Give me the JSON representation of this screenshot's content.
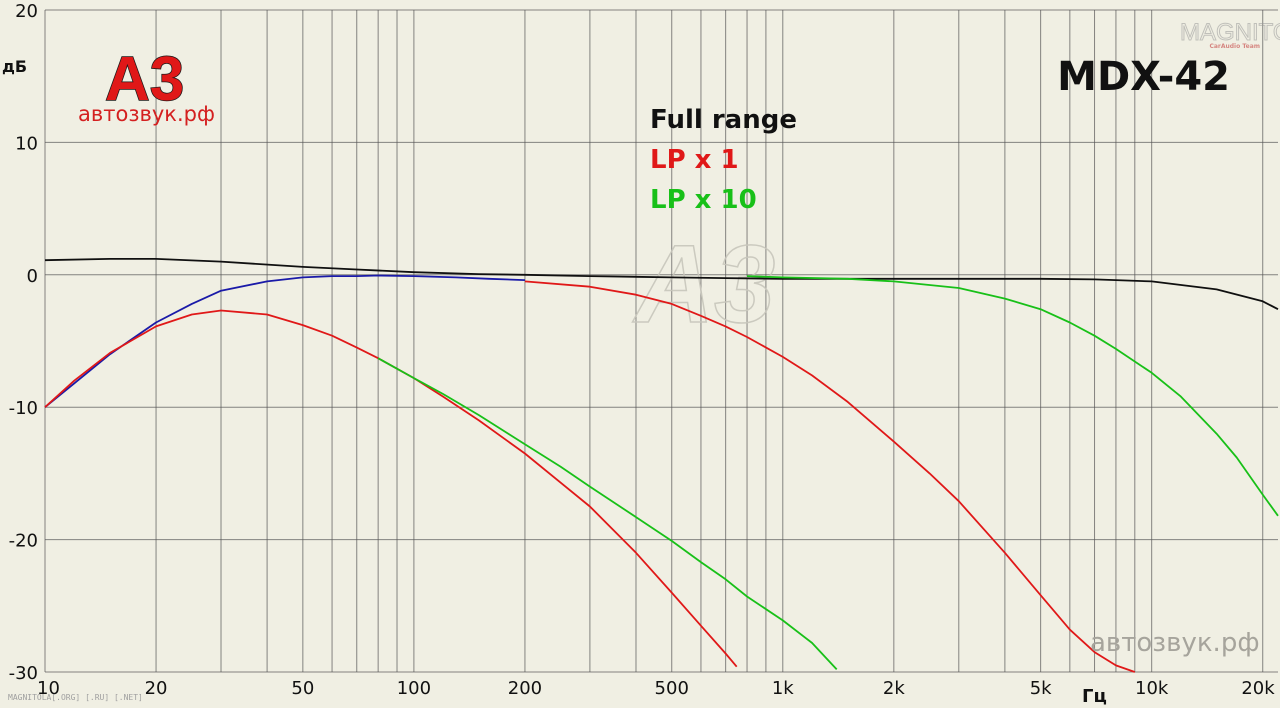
{
  "chart_data": {
    "type": "line",
    "title": "MDX-42",
    "xlabel": "Гц",
    "ylabel": "дБ",
    "x_scale": "log",
    "xlim": [
      10,
      22000
    ],
    "ylim": [
      -30,
      20
    ],
    "grid": true,
    "x_tick_labels": [
      {
        "v": 10,
        "t": "10"
      },
      {
        "v": 20,
        "t": "20"
      },
      {
        "v": 50,
        "t": "50"
      },
      {
        "v": 100,
        "t": "100"
      },
      {
        "v": 200,
        "t": "200"
      },
      {
        "v": 500,
        "t": "500"
      },
      {
        "v": 1000,
        "t": "1k"
      },
      {
        "v": 2000,
        "t": "2k"
      },
      {
        "v": 5000,
        "t": "5k"
      },
      {
        "v": 10000,
        "t": "10k"
      },
      {
        "v": 20000,
        "t": "20k"
      }
    ],
    "y_tick_labels": [
      {
        "v": 20,
        "t": "20"
      },
      {
        "v": 10,
        "t": "10"
      },
      {
        "v": 0,
        "t": "0"
      },
      {
        "v": -10,
        "t": "-10"
      },
      {
        "v": -20,
        "t": "-20"
      },
      {
        "v": -30,
        "t": "-30"
      }
    ],
    "legend": [
      {
        "name": "Full range",
        "color": "#111111"
      },
      {
        "name": "LP x 1",
        "color": "#e01818"
      },
      {
        "name": "LP x 10",
        "color": "#18c018"
      }
    ],
    "series": [
      {
        "color": "#101010",
        "x": [
          10,
          15,
          20,
          30,
          50,
          70,
          100,
          150,
          200,
          300,
          500,
          700,
          1000,
          2000,
          3000,
          5000,
          7000,
          10000,
          15000,
          20000,
          22000
        ],
        "y": [
          1.1,
          1.2,
          1.2,
          1.0,
          0.6,
          0.4,
          0.2,
          0.05,
          0.0,
          -0.1,
          -0.2,
          -0.25,
          -0.3,
          -0.3,
          -0.3,
          -0.3,
          -0.35,
          -0.5,
          -1.1,
          -2.0,
          -2.6
        ]
      },
      {
        "color": "#1a1aa8",
        "x": [
          10,
          12,
          15,
          20,
          25,
          30,
          40,
          50,
          60,
          70,
          80,
          100,
          130,
          160,
          200
        ],
        "y": [
          -10.0,
          -8.2,
          -6.0,
          -3.6,
          -2.2,
          -1.2,
          -0.5,
          -0.2,
          -0.1,
          -0.1,
          -0.05,
          -0.1,
          -0.2,
          -0.3,
          -0.4
        ]
      },
      {
        "name": "LP x 1",
        "color": "#e01818",
        "x": [
          10,
          12,
          15,
          20,
          25,
          30,
          40,
          50,
          60,
          70,
          80,
          100,
          120,
          150,
          200,
          250,
          300,
          400,
          500,
          600,
          700,
          750
        ],
        "y": [
          -10.0,
          -8.0,
          -5.9,
          -3.9,
          -3.0,
          -2.7,
          -3.0,
          -3.8,
          -4.6,
          -5.5,
          -6.3,
          -7.8,
          -9.2,
          -11.0,
          -13.5,
          -15.7,
          -17.5,
          -21.0,
          -24.0,
          -26.5,
          -28.6,
          -29.6
        ]
      },
      {
        "name": "LP x 10",
        "color": "#18c018",
        "x": [
          800,
          1000,
          1500,
          2000,
          3000,
          4000,
          5000,
          6000,
          7000,
          8000,
          10000,
          12000,
          15000,
          17000,
          20000,
          22000
        ],
        "y": [
          -0.1,
          -0.2,
          -0.3,
          -0.5,
          -1.0,
          -1.8,
          -2.6,
          -3.6,
          -4.6,
          -5.6,
          -7.4,
          -9.2,
          -12.0,
          -13.8,
          -16.6,
          -18.2
        ]
      },
      {
        "color": "#e01818",
        "x": [
          200,
          300,
          400,
          500,
          600,
          700,
          800,
          1000,
          1200,
          1500,
          2000,
          2500,
          3000,
          4000,
          5000,
          6000,
          7000,
          8000,
          9000
        ],
        "y": [
          -0.5,
          -0.9,
          -1.5,
          -2.2,
          -3.1,
          -3.9,
          -4.7,
          -6.2,
          -7.6,
          -9.6,
          -12.6,
          -15.0,
          -17.1,
          -21.0,
          -24.2,
          -26.8,
          -28.5,
          -29.5,
          -30.0
        ]
      },
      {
        "color": "#18c018",
        "x": [
          80,
          100,
          120,
          150,
          200,
          250,
          300,
          400,
          500,
          600,
          700,
          800,
          1000,
          1200,
          1400
        ],
        "y": [
          -6.3,
          -7.8,
          -9.0,
          -10.6,
          -12.8,
          -14.5,
          -16.0,
          -18.3,
          -20.1,
          -21.7,
          -23.0,
          -24.3,
          -26.1,
          -27.8,
          -29.8
        ]
      }
    ]
  },
  "logo": {
    "mark": "A3",
    "site": "автозвук.рф"
  },
  "watermark_bottom_right": "автозвук.рф",
  "watermark_top_right": {
    "name": "MAGNITOLA",
    "tag": "CarAudio Team"
  },
  "footer_credit": "MAGNITOLA[.ORG] [.RU] [.NET]",
  "center_watermark": "A3"
}
